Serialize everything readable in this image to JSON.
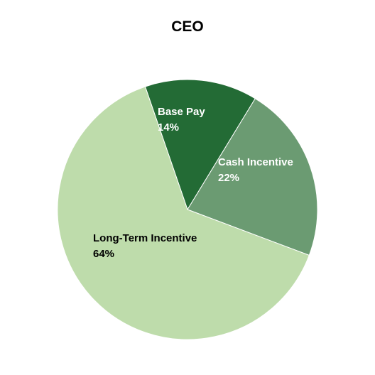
{
  "chart_data": {
    "type": "pie",
    "title": "CEO",
    "slices": [
      {
        "label": "Base Pay",
        "value": 14,
        "value_text": "14%",
        "color": "#236b35",
        "label_color": "#ffffff"
      },
      {
        "label": "Cash Incentive",
        "value": 22,
        "value_text": "22%",
        "color": "#6b9b72",
        "label_color": "#ffffff"
      },
      {
        "label": "Long-Term Incentive",
        "value": 64,
        "value_text": "64%",
        "color": "#bedcab",
        "label_color": "#000000"
      }
    ],
    "start_angle_deg": -19,
    "legend": "none"
  }
}
